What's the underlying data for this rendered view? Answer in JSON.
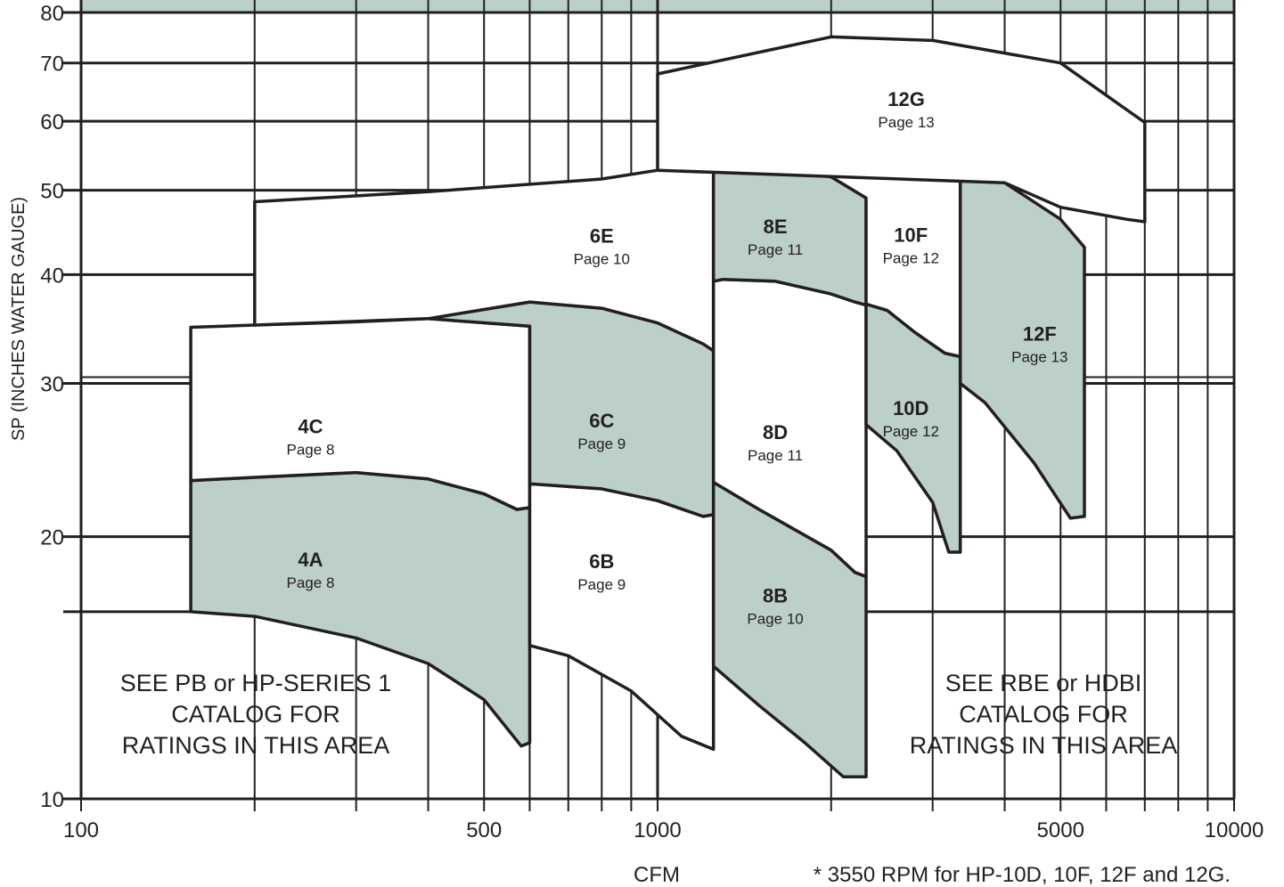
{
  "chart_data": {
    "type": "area",
    "x_scale": "log",
    "y_scale": "log",
    "xlim": [
      100,
      10000
    ],
    "ylim": [
      10,
      80
    ],
    "grid": true,
    "xlabel": "CFM",
    "ylabel": "SP (INCHES WATER GAUGE)",
    "x_ticks": [
      {
        "value": 100,
        "label": "100"
      },
      {
        "value": 500,
        "label": "500"
      },
      {
        "value": 1000,
        "label": "1000"
      },
      {
        "value": 5000,
        "label": "5000"
      },
      {
        "value": 10000,
        "label": "10000"
      }
    ],
    "y_ticks": [
      {
        "value": 10,
        "label": "10"
      },
      {
        "value": 20,
        "label": "20"
      },
      {
        "value": 30,
        "label": "30"
      },
      {
        "value": 40,
        "label": "40"
      },
      {
        "value": 50,
        "label": "50"
      },
      {
        "value": 60,
        "label": "60"
      },
      {
        "value": 70,
        "label": "70"
      },
      {
        "value": 80,
        "label": "80"
      }
    ],
    "x_gridlines": [
      100,
      200,
      300,
      400,
      500,
      600,
      700,
      800,
      900,
      1000,
      2000,
      3000,
      4000,
      5000,
      6000,
      7000,
      8000,
      9000,
      10000
    ],
    "y_gridlines": [
      10,
      16.4,
      20,
      30,
      40,
      50,
      60,
      70,
      80
    ],
    "regions": [
      {
        "name": "4A",
        "page": "Page 8",
        "shaded": true,
        "label_at": [
          250,
          18.5
        ],
        "outline": [
          [
            155,
            16.4
          ],
          [
            200,
            16.2
          ],
          [
            300,
            15.3
          ],
          [
            400,
            14.3
          ],
          [
            500,
            13.0
          ],
          [
            580,
            11.5
          ],
          [
            600,
            11.6
          ],
          [
            600,
            21.6
          ],
          [
            570,
            21.5
          ],
          [
            500,
            22.4
          ],
          [
            400,
            23.3
          ],
          [
            300,
            23.7
          ],
          [
            200,
            23.4
          ],
          [
            155,
            23.2
          ]
        ]
      },
      {
        "name": "4C",
        "page": "Page 8",
        "shaded": false,
        "label_at": [
          250,
          26.3
        ],
        "outline": [
          [
            155,
            23.2
          ],
          [
            200,
            23.4
          ],
          [
            300,
            23.7
          ],
          [
            400,
            23.3
          ],
          [
            500,
            22.4
          ],
          [
            570,
            21.5
          ],
          [
            600,
            21.6
          ],
          [
            600,
            34.9
          ],
          [
            400,
            35.6
          ],
          [
            300,
            35.3
          ],
          [
            200,
            35.0
          ],
          [
            155,
            34.8
          ]
        ]
      },
      {
        "name": "6B",
        "page": "Page 9",
        "shaded": false,
        "label_at": [
          800,
          18.4
        ],
        "outline": [
          [
            600,
            15.0
          ],
          [
            700,
            14.6
          ],
          [
            900,
            13.3
          ],
          [
            1100,
            11.8
          ],
          [
            1250,
            11.4
          ],
          [
            1250,
            21.2
          ],
          [
            1200,
            21.1
          ],
          [
            1000,
            22.0
          ],
          [
            800,
            22.7
          ],
          [
            600,
            23.0
          ]
        ]
      },
      {
        "name": "6C",
        "page": "Page 9",
        "shaded": true,
        "label_at": [
          800,
          26.7
        ],
        "outline": [
          [
            600,
            23.0
          ],
          [
            800,
            22.7
          ],
          [
            1000,
            22.0
          ],
          [
            1200,
            21.1
          ],
          [
            1250,
            21.2
          ],
          [
            1250,
            32.7
          ],
          [
            1200,
            33.3
          ],
          [
            1000,
            35.2
          ],
          [
            800,
            36.6
          ],
          [
            600,
            37.2
          ],
          [
            400,
            35.6
          ],
          [
            600,
            34.9
          ]
        ]
      },
      {
        "name": "6E",
        "page": "Page 10",
        "shaded": false,
        "label_at": [
          800,
          43.5
        ],
        "outline": [
          [
            200,
            35.0
          ],
          [
            200,
            48.5
          ],
          [
            400,
            49.8
          ],
          [
            800,
            51.5
          ],
          [
            1000,
            52.7
          ],
          [
            1250,
            52.7
          ],
          [
            1250,
            32.7
          ],
          [
            1200,
            33.3
          ],
          [
            1000,
            35.2
          ],
          [
            800,
            36.6
          ],
          [
            600,
            37.2
          ],
          [
            400,
            35.6
          ],
          [
            200,
            35.0
          ]
        ]
      },
      {
        "name": "8B",
        "page": "Page 10",
        "shaded": true,
        "label_at": [
          1600,
          16.8
        ],
        "outline": [
          [
            1250,
            14.2
          ],
          [
            1500,
            12.8
          ],
          [
            1800,
            11.6
          ],
          [
            2100,
            10.6
          ],
          [
            2300,
            10.6
          ],
          [
            2300,
            18.0
          ],
          [
            2200,
            18.2
          ],
          [
            2000,
            19.3
          ],
          [
            1500,
            21.5
          ],
          [
            1250,
            23.1
          ]
        ]
      },
      {
        "name": "8D",
        "page": "Page 11",
        "shaded": false,
        "label_at": [
          1600,
          25.9
        ],
        "outline": [
          [
            1250,
            23.1
          ],
          [
            1500,
            21.5
          ],
          [
            2000,
            19.3
          ],
          [
            2200,
            18.2
          ],
          [
            2300,
            18.0
          ],
          [
            2300,
            36.9
          ],
          [
            2200,
            37.2
          ],
          [
            2000,
            38.0
          ],
          [
            1600,
            39.3
          ],
          [
            1300,
            39.5
          ],
          [
            1250,
            39.3
          ]
        ]
      },
      {
        "name": "8E",
        "page": "Page 11",
        "shaded": true,
        "label_at": [
          1600,
          44.6
        ],
        "outline": [
          [
            1250,
            39.3
          ],
          [
            1300,
            39.5
          ],
          [
            1600,
            39.3
          ],
          [
            2000,
            38.0
          ],
          [
            2200,
            37.2
          ],
          [
            2300,
            36.9
          ],
          [
            2300,
            49.0
          ],
          [
            2000,
            51.8
          ],
          [
            1600,
            53.3
          ],
          [
            1250,
            53.6
          ]
        ]
      },
      {
        "name": "10D",
        "page": "Page 12",
        "shaded": true,
        "label_at": [
          2750,
          27.6
        ],
        "outline": [
          [
            2300,
            26.9
          ],
          [
            2600,
            25.1
          ],
          [
            3000,
            21.9
          ],
          [
            3200,
            19.2
          ],
          [
            3350,
            19.2
          ],
          [
            3350,
            32.2
          ],
          [
            3150,
            32.5
          ],
          [
            2800,
            34.3
          ],
          [
            2500,
            36.4
          ],
          [
            2300,
            37.0
          ]
        ]
      },
      {
        "name": "10F",
        "page": "Page 12",
        "shaded": false,
        "label_at": [
          2750,
          43.6
        ],
        "outline": [
          [
            2300,
            37.0
          ],
          [
            2500,
            36.4
          ],
          [
            2800,
            34.3
          ],
          [
            3150,
            32.5
          ],
          [
            3350,
            32.2
          ],
          [
            3350,
            54.5
          ],
          [
            3000,
            54.7
          ],
          [
            2000,
            54.2
          ],
          [
            1250,
            53.6
          ],
          [
            1600,
            53.3
          ],
          [
            2000,
            51.8
          ],
          [
            2300,
            49.0
          ]
        ]
      },
      {
        "name": "12F",
        "page": "Page 13",
        "shaded": true,
        "label_at": [
          4600,
          33.6
        ],
        "outline": [
          [
            3350,
            30.0
          ],
          [
            3700,
            28.5
          ],
          [
            4500,
            24.3
          ],
          [
            5200,
            21.0
          ],
          [
            5500,
            21.1
          ],
          [
            5500,
            43.0
          ],
          [
            5000,
            46.3
          ],
          [
            4000,
            51.0
          ],
          [
            3500,
            54.0
          ],
          [
            3350,
            54.5
          ]
        ]
      },
      {
        "name": "12G",
        "page": "Page 13",
        "shaded": false,
        "label_at": [
          2700,
          62.5
        ],
        "outline": [
          [
            1000,
            52.7
          ],
          [
            1000,
            68.0
          ],
          [
            2000,
            75.0
          ],
          [
            3000,
            74.3
          ],
          [
            5000,
            70.0
          ],
          [
            7000,
            59.8
          ],
          [
            7000,
            46.0
          ],
          [
            6500,
            46.3
          ],
          [
            5000,
            47.8
          ],
          [
            4000,
            51.0
          ]
        ]
      }
    ],
    "top_band": {
      "shaded": true,
      "from_y": 80
    },
    "annotations": {
      "left_note": [
        "SEE PB or HP-SERIES 1",
        "CATALOG FOR",
        "RATINGS IN THIS AREA"
      ],
      "right_note": [
        "SEE RBE or HDBI",
        "CATALOG FOR",
        "RATINGS IN THIS AREA"
      ],
      "footnote": "* 3550 RPM for HP-10D, 10F, 12F and 12G."
    },
    "colors": {
      "fill": "#bccfc8",
      "line": "#231f20",
      "background": "#ffffff"
    }
  }
}
